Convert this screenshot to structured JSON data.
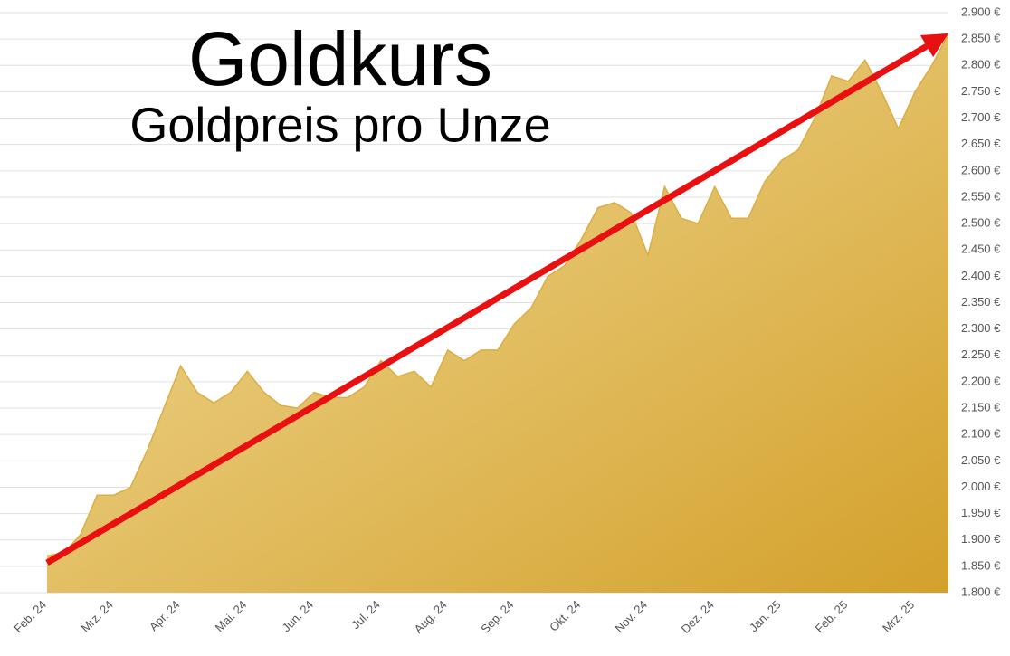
{
  "chart_data": {
    "type": "area",
    "title": "Goldkurs",
    "subtitle": "Goldpreis pro Unze",
    "categories": [
      "Feb. 24",
      null,
      null,
      null,
      "Mrz. 24",
      null,
      null,
      null,
      "Apr. 24",
      null,
      null,
      null,
      "Mai. 24",
      null,
      null,
      null,
      "Jun. 24",
      null,
      null,
      null,
      "Jul. 24",
      null,
      null,
      null,
      "Aug. 24",
      null,
      null,
      null,
      "Sep. 24",
      null,
      null,
      null,
      "Okt. 24",
      null,
      null,
      null,
      "Nov. 24",
      null,
      null,
      null,
      "Dez. 24",
      null,
      null,
      null,
      "Jan. 25",
      null,
      null,
      null,
      "Feb. 25",
      null,
      null,
      null,
      "Mrz. 25",
      null,
      null
    ],
    "values": [
      1870,
      1875,
      1910,
      1985,
      1985,
      2000,
      2070,
      2150,
      2230,
      2180,
      2160,
      2180,
      2220,
      2180,
      2155,
      2150,
      2180,
      2170,
      2170,
      2190,
      2240,
      2210,
      2220,
      2190,
      2260,
      2240,
      2260,
      2260,
      2310,
      2340,
      2400,
      2420,
      2470,
      2530,
      2540,
      2520,
      2440,
      2570,
      2510,
      2500,
      2570,
      2510,
      2510,
      2580,
      2620,
      2640,
      2700,
      2780,
      2770,
      2810,
      2750,
      2680,
      2750,
      2800,
      2860
    ],
    "color": "#d9ae45",
    "ylim": [
      1800,
      2900
    ],
    "yticks": [
      {
        "value": 1800,
        "label": "1.800 €"
      },
      {
        "value": 1850,
        "label": "1.850 €"
      },
      {
        "value": 1900,
        "label": "1.900 €"
      },
      {
        "value": 1950,
        "label": "1.950 €"
      },
      {
        "value": 2000,
        "label": "2.000 €"
      },
      {
        "value": 2050,
        "label": "2.050 €"
      },
      {
        "value": 2100,
        "label": "2.100 €"
      },
      {
        "value": 2150,
        "label": "2.150 €"
      },
      {
        "value": 2200,
        "label": "2.200 €"
      },
      {
        "value": 2250,
        "label": "2.250 €"
      },
      {
        "value": 2300,
        "label": "2.300 €"
      },
      {
        "value": 2350,
        "label": "2.350 €"
      },
      {
        "value": 2400,
        "label": "2.400 €"
      },
      {
        "value": 2450,
        "label": "2.450 €"
      },
      {
        "value": 2500,
        "label": "2.500 €"
      },
      {
        "value": 2550,
        "label": "2.550 €"
      },
      {
        "value": 2600,
        "label": "2.600 €"
      },
      {
        "value": 2650,
        "label": "2.650 €"
      },
      {
        "value": 2700,
        "label": "2.700 €"
      },
      {
        "value": 2750,
        "label": "2.750 €"
      },
      {
        "value": 2800,
        "label": "2.800 €"
      },
      {
        "value": 2850,
        "label": "2.850 €"
      },
      {
        "value": 2900,
        "label": "2.900 €"
      }
    ],
    "grid": true
  }
}
